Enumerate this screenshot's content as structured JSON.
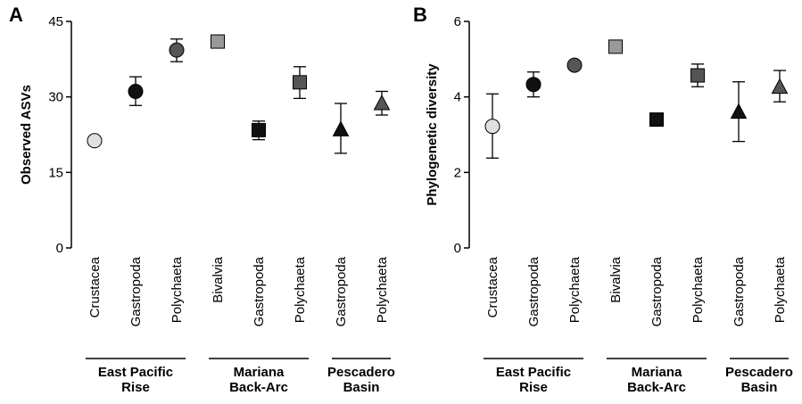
{
  "chart_data": [
    {
      "type": "scatter",
      "panel": "A",
      "ylabel": "Observed ASVs",
      "ylim": [
        0,
        45
      ],
      "yticks": [
        0,
        15,
        30,
        45
      ],
      "categories": [
        "Crustacea",
        "Gastropoda",
        "Polychaeta",
        "Bivalvia",
        "Gastropoda",
        "Polychaeta",
        "Gastropoda",
        "Polychaeta"
      ],
      "groups": [
        {
          "name": "East Pacific\nRise",
          "lines": [
            "East Pacific",
            "Rise"
          ],
          "categories": [
            0,
            1,
            2
          ]
        },
        {
          "name": "Mariana\nBack-Arc",
          "lines": [
            "Mariana",
            "Back-Arc"
          ],
          "categories": [
            3,
            4,
            5
          ]
        },
        {
          "name": "Pescadero\nBasin",
          "lines": [
            "Pescadero",
            "Basin"
          ],
          "categories": [
            6,
            7
          ]
        }
      ],
      "points": [
        {
          "value": 21.3,
          "err_low": 21.3,
          "err_high": 21.3,
          "marker": "circle",
          "color": "#e0e0e0"
        },
        {
          "value": 31.1,
          "err_low": 28.3,
          "err_high": 34.0,
          "marker": "circle",
          "color": "#111111"
        },
        {
          "value": 39.3,
          "err_low": 37.0,
          "err_high": 41.5,
          "marker": "circle",
          "color": "#555555"
        },
        {
          "value": 41.0,
          "err_low": 41.0,
          "err_high": 41.0,
          "marker": "square",
          "color": "#999999"
        },
        {
          "value": 23.4,
          "err_low": 21.5,
          "err_high": 25.2,
          "marker": "square",
          "color": "#111111"
        },
        {
          "value": 32.9,
          "err_low": 29.7,
          "err_high": 36.0,
          "marker": "square",
          "color": "#555555"
        },
        {
          "value": 23.5,
          "err_low": 18.8,
          "err_high": 28.7,
          "marker": "triangle",
          "color": "#111111"
        },
        {
          "value": 28.7,
          "err_low": 26.4,
          "err_high": 31.1,
          "marker": "triangle",
          "color": "#555555"
        }
      ],
      "grid": false
    },
    {
      "type": "scatter",
      "panel": "B",
      "ylabel": "Phylogenetic diversity",
      "ylim": [
        0,
        6
      ],
      "yticks": [
        0,
        2,
        4,
        6
      ],
      "categories": [
        "Crustacea",
        "Gastropoda",
        "Polychaeta",
        "Bivalvia",
        "Gastropoda",
        "Polychaeta",
        "Gastropoda",
        "Polychaeta"
      ],
      "groups": [
        {
          "name": "East Pacific\nRise",
          "lines": [
            "East Pacific",
            "Rise"
          ],
          "categories": [
            0,
            1,
            2
          ]
        },
        {
          "name": "Mariana\nBack-Arc",
          "lines": [
            "Mariana",
            "Back-Arc"
          ],
          "categories": [
            3,
            4,
            5
          ]
        },
        {
          "name": "Pescadero\nBasin",
          "lines": [
            "Pescadero",
            "Basin"
          ],
          "categories": [
            6,
            7
          ]
        }
      ],
      "points": [
        {
          "value": 3.22,
          "err_low": 2.38,
          "err_high": 4.08,
          "marker": "circle",
          "color": "#e0e0e0"
        },
        {
          "value": 4.33,
          "err_low": 4.0,
          "err_high": 4.66,
          "marker": "circle",
          "color": "#111111"
        },
        {
          "value": 4.84,
          "err_low": 4.77,
          "err_high": 4.91,
          "marker": "circle",
          "color": "#555555"
        },
        {
          "value": 5.33,
          "err_low": 5.33,
          "err_high": 5.33,
          "marker": "square",
          "color": "#999999"
        },
        {
          "value": 3.4,
          "err_low": 3.4,
          "err_high": 3.4,
          "marker": "square",
          "color": "#111111"
        },
        {
          "value": 4.57,
          "err_low": 4.27,
          "err_high": 4.87,
          "marker": "square",
          "color": "#555555"
        },
        {
          "value": 3.6,
          "err_low": 2.82,
          "err_high": 4.4,
          "marker": "triangle",
          "color": "#111111"
        },
        {
          "value": 4.26,
          "err_low": 3.87,
          "err_high": 4.7,
          "marker": "triangle",
          "color": "#555555"
        }
      ],
      "grid": false
    }
  ]
}
